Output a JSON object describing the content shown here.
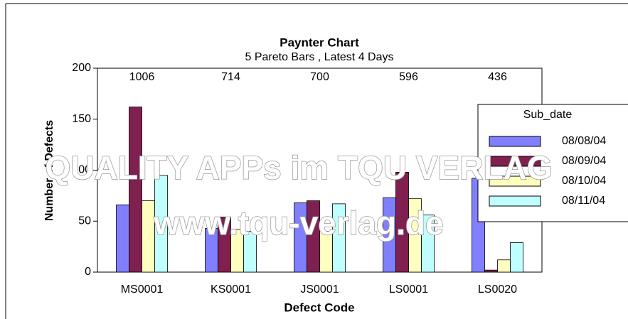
{
  "chart_data": {
    "type": "bar",
    "title": "Paynter Chart",
    "subtitle": "5 Pareto Bars , Latest 4 Days",
    "x_label": "Defect Code",
    "y_label": "Number of Defects",
    "categories": [
      "MS0001",
      "KS0001",
      "JS0001",
      "LS0001",
      "LS0020"
    ],
    "totals": [
      1006,
      714,
      700,
      596,
      436
    ],
    "legend_title": "Sub_date",
    "legend": "right",
    "series": [
      {
        "name": "08/08/04",
        "color": "#8080ff",
        "values": [
          66,
          43,
          68,
          73,
          92
        ]
      },
      {
        "name": "08/09/04",
        "color": "#802050",
        "values": [
          162,
          54,
          70,
          98,
          2
        ]
      },
      {
        "name": "08/10/04",
        "color": "#ffffc0",
        "values": [
          70,
          42,
          40,
          72,
          12
        ]
      },
      {
        "name": "08/11/04",
        "color": "#c0ffff",
        "values": [
          95,
          40,
          67,
          56,
          29
        ]
      }
    ],
    "ylim": [
      0,
      200
    ],
    "yticks": [
      0,
      50,
      100,
      150,
      200
    ],
    "grid": false
  },
  "watermark": [
    "QUALITY APPs im TQU VERLAG",
    "www.tqu-verlag.de"
  ]
}
